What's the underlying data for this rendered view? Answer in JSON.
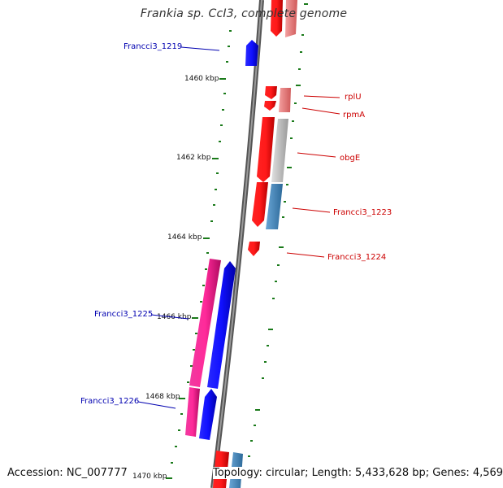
{
  "title": "Frankia sp. CcI3, complete genome",
  "accession": "Accession: NC_007777",
  "summary": "Topology: circular; Length: 5,433,628 bp; Genes: 4,569",
  "ticks": [
    "1460 kbp",
    "1462 kbp",
    "1464 kbp",
    "1466 kbp",
    "1468 kbp",
    "1470 kbp"
  ],
  "gene_labels": {
    "francci3_1219": "Francci3_1219",
    "rplU": "rplU",
    "rpmA": "rpmA",
    "obgE": "obgE",
    "francci3_1223": "Francci3_1223",
    "francci3_1224": "Francci3_1224",
    "francci3_1225": "Francci3_1225",
    "francci3_1226": "Francci3_1226"
  },
  "colors": {
    "forward_strand": "#1a1ae6",
    "reverse_strand": "#e61a1a",
    "pink_feature": "#e6178a",
    "grey_feature": "#c8c8c8",
    "steel_feature": "#4a86b8",
    "light_red_feature": "#e88080",
    "tick_green": "#1a7a1a"
  }
}
